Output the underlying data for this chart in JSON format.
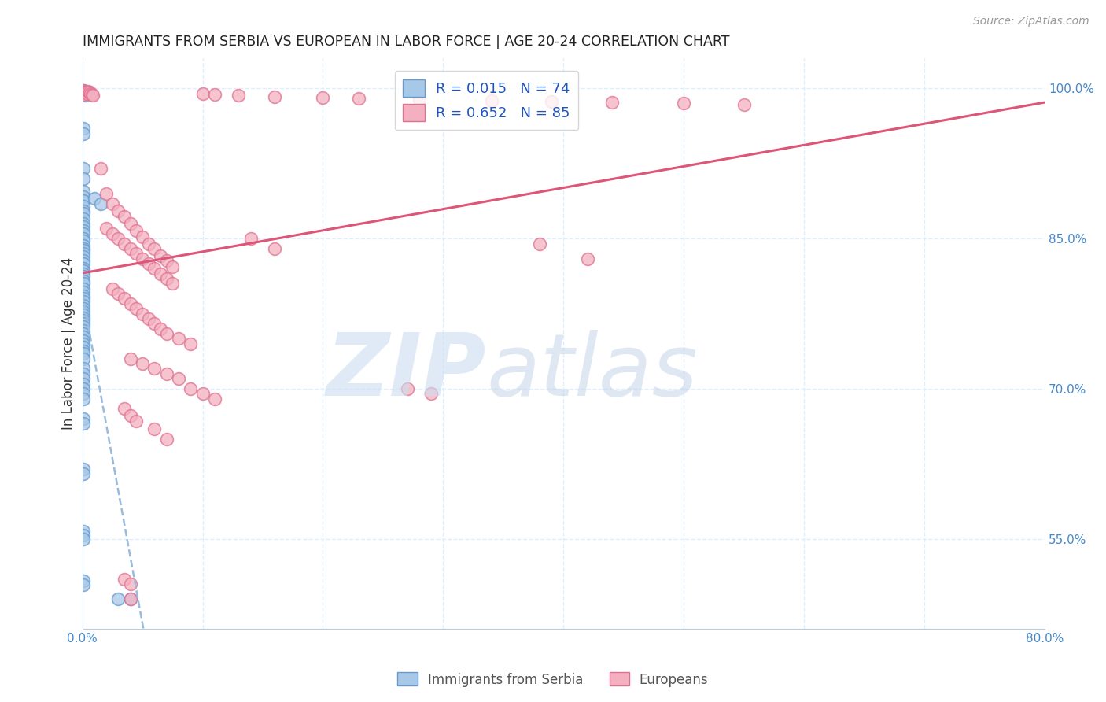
{
  "title": "IMMIGRANTS FROM SERBIA VS EUROPEAN IN LABOR FORCE | AGE 20-24 CORRELATION CHART",
  "source": "Source: ZipAtlas.com",
  "ylabel": "In Labor Force | Age 20-24",
  "xlim": [
    0.0,
    0.8
  ],
  "ylim": [
    0.46,
    1.03
  ],
  "xticks": [
    0.0,
    0.1,
    0.2,
    0.3,
    0.4,
    0.5,
    0.6,
    0.7,
    0.8
  ],
  "xticklabels": [
    "0.0%",
    "",
    "",
    "",
    "",
    "",
    "",
    "",
    "80.0%"
  ],
  "yticks": [
    0.55,
    0.7,
    0.85,
    1.0
  ],
  "yticklabels": [
    "55.0%",
    "70.0%",
    "85.0%",
    "100.0%"
  ],
  "serbia_color": "#a8c8e8",
  "serbia_edge": "#6699cc",
  "european_color": "#f4b0c0",
  "european_edge": "#e07090",
  "serbia_trend_color": "#99bbdd",
  "european_trend_color": "#dd5577",
  "background_color": "#ffffff",
  "grid_color": "#ddeeff",
  "serbia_R": 0.015,
  "serbia_N": 74,
  "european_R": 0.652,
  "european_N": 85,
  "serbia_points": [
    [
      0.001,
      0.998
    ],
    [
      0.003,
      0.997
    ],
    [
      0.002,
      0.993
    ],
    [
      0.001,
      0.96
    ],
    [
      0.001,
      0.955
    ],
    [
      0.001,
      0.92
    ],
    [
      0.001,
      0.91
    ],
    [
      0.001,
      0.897
    ],
    [
      0.001,
      0.892
    ],
    [
      0.001,
      0.888
    ],
    [
      0.001,
      0.882
    ],
    [
      0.001,
      0.878
    ],
    [
      0.001,
      0.875
    ],
    [
      0.001,
      0.87
    ],
    [
      0.001,
      0.865
    ],
    [
      0.001,
      0.862
    ],
    [
      0.001,
      0.858
    ],
    [
      0.001,
      0.855
    ],
    [
      0.001,
      0.85
    ],
    [
      0.001,
      0.848
    ],
    [
      0.001,
      0.843
    ],
    [
      0.001,
      0.84
    ],
    [
      0.001,
      0.838
    ],
    [
      0.001,
      0.835
    ],
    [
      0.001,
      0.832
    ],
    [
      0.001,
      0.828
    ],
    [
      0.001,
      0.825
    ],
    [
      0.001,
      0.82
    ],
    [
      0.001,
      0.818
    ],
    [
      0.001,
      0.815
    ],
    [
      0.001,
      0.812
    ],
    [
      0.001,
      0.808
    ],
    [
      0.001,
      0.805
    ],
    [
      0.001,
      0.8
    ],
    [
      0.001,
      0.797
    ],
    [
      0.001,
      0.793
    ],
    [
      0.001,
      0.79
    ],
    [
      0.001,
      0.787
    ],
    [
      0.001,
      0.783
    ],
    [
      0.001,
      0.78
    ],
    [
      0.001,
      0.777
    ],
    [
      0.001,
      0.774
    ],
    [
      0.001,
      0.771
    ],
    [
      0.001,
      0.768
    ],
    [
      0.001,
      0.765
    ],
    [
      0.001,
      0.762
    ],
    [
      0.001,
      0.758
    ],
    [
      0.001,
      0.755
    ],
    [
      0.001,
      0.752
    ],
    [
      0.001,
      0.748
    ],
    [
      0.001,
      0.745
    ],
    [
      0.001,
      0.742
    ],
    [
      0.001,
      0.738
    ],
    [
      0.001,
      0.735
    ],
    [
      0.001,
      0.73
    ],
    [
      0.001,
      0.72
    ],
    [
      0.001,
      0.715
    ],
    [
      0.001,
      0.71
    ],
    [
      0.001,
      0.705
    ],
    [
      0.001,
      0.7
    ],
    [
      0.001,
      0.695
    ],
    [
      0.001,
      0.69
    ],
    [
      0.001,
      0.67
    ],
    [
      0.001,
      0.665
    ],
    [
      0.001,
      0.62
    ],
    [
      0.001,
      0.615
    ],
    [
      0.001,
      0.558
    ],
    [
      0.001,
      0.554
    ],
    [
      0.001,
      0.55
    ],
    [
      0.001,
      0.508
    ],
    [
      0.001,
      0.504
    ],
    [
      0.03,
      0.49
    ],
    [
      0.04,
      0.49
    ],
    [
      0.01,
      0.89
    ],
    [
      0.015,
      0.885
    ]
  ],
  "european_points": [
    [
      0.001,
      0.998
    ],
    [
      0.001,
      0.996
    ],
    [
      0.001,
      0.994
    ],
    [
      0.002,
      0.997
    ],
    [
      0.003,
      0.996
    ],
    [
      0.004,
      0.995
    ],
    [
      0.005,
      0.997
    ],
    [
      0.006,
      0.996
    ],
    [
      0.007,
      0.995
    ],
    [
      0.008,
      0.994
    ],
    [
      0.009,
      0.993
    ],
    [
      0.1,
      0.995
    ],
    [
      0.11,
      0.994
    ],
    [
      0.13,
      0.993
    ],
    [
      0.16,
      0.992
    ],
    [
      0.2,
      0.991
    ],
    [
      0.23,
      0.99
    ],
    [
      0.28,
      0.989
    ],
    [
      0.34,
      0.988
    ],
    [
      0.39,
      0.987
    ],
    [
      0.44,
      0.986
    ],
    [
      0.5,
      0.985
    ],
    [
      0.55,
      0.984
    ],
    [
      0.015,
      0.92
    ],
    [
      0.02,
      0.895
    ],
    [
      0.025,
      0.885
    ],
    [
      0.03,
      0.878
    ],
    [
      0.035,
      0.872
    ],
    [
      0.04,
      0.865
    ],
    [
      0.045,
      0.858
    ],
    [
      0.05,
      0.852
    ],
    [
      0.055,
      0.845
    ],
    [
      0.06,
      0.84
    ],
    [
      0.065,
      0.833
    ],
    [
      0.07,
      0.828
    ],
    [
      0.075,
      0.822
    ],
    [
      0.02,
      0.86
    ],
    [
      0.025,
      0.855
    ],
    [
      0.03,
      0.85
    ],
    [
      0.035,
      0.845
    ],
    [
      0.04,
      0.84
    ],
    [
      0.045,
      0.835
    ],
    [
      0.05,
      0.83
    ],
    [
      0.055,
      0.825
    ],
    [
      0.06,
      0.82
    ],
    [
      0.065,
      0.815
    ],
    [
      0.07,
      0.81
    ],
    [
      0.075,
      0.805
    ],
    [
      0.025,
      0.8
    ],
    [
      0.03,
      0.795
    ],
    [
      0.035,
      0.79
    ],
    [
      0.04,
      0.785
    ],
    [
      0.045,
      0.78
    ],
    [
      0.05,
      0.775
    ],
    [
      0.055,
      0.77
    ],
    [
      0.06,
      0.765
    ],
    [
      0.065,
      0.76
    ],
    [
      0.07,
      0.755
    ],
    [
      0.08,
      0.75
    ],
    [
      0.09,
      0.745
    ],
    [
      0.04,
      0.73
    ],
    [
      0.05,
      0.725
    ],
    [
      0.06,
      0.72
    ],
    [
      0.07,
      0.715
    ],
    [
      0.08,
      0.71
    ],
    [
      0.09,
      0.7
    ],
    [
      0.1,
      0.695
    ],
    [
      0.11,
      0.69
    ],
    [
      0.035,
      0.68
    ],
    [
      0.04,
      0.673
    ],
    [
      0.045,
      0.668
    ],
    [
      0.06,
      0.66
    ],
    [
      0.07,
      0.65
    ],
    [
      0.14,
      0.85
    ],
    [
      0.16,
      0.84
    ],
    [
      0.035,
      0.51
    ],
    [
      0.04,
      0.505
    ],
    [
      0.38,
      0.845
    ],
    [
      0.42,
      0.83
    ],
    [
      0.04,
      0.49
    ],
    [
      0.27,
      0.7
    ],
    [
      0.29,
      0.695
    ]
  ]
}
